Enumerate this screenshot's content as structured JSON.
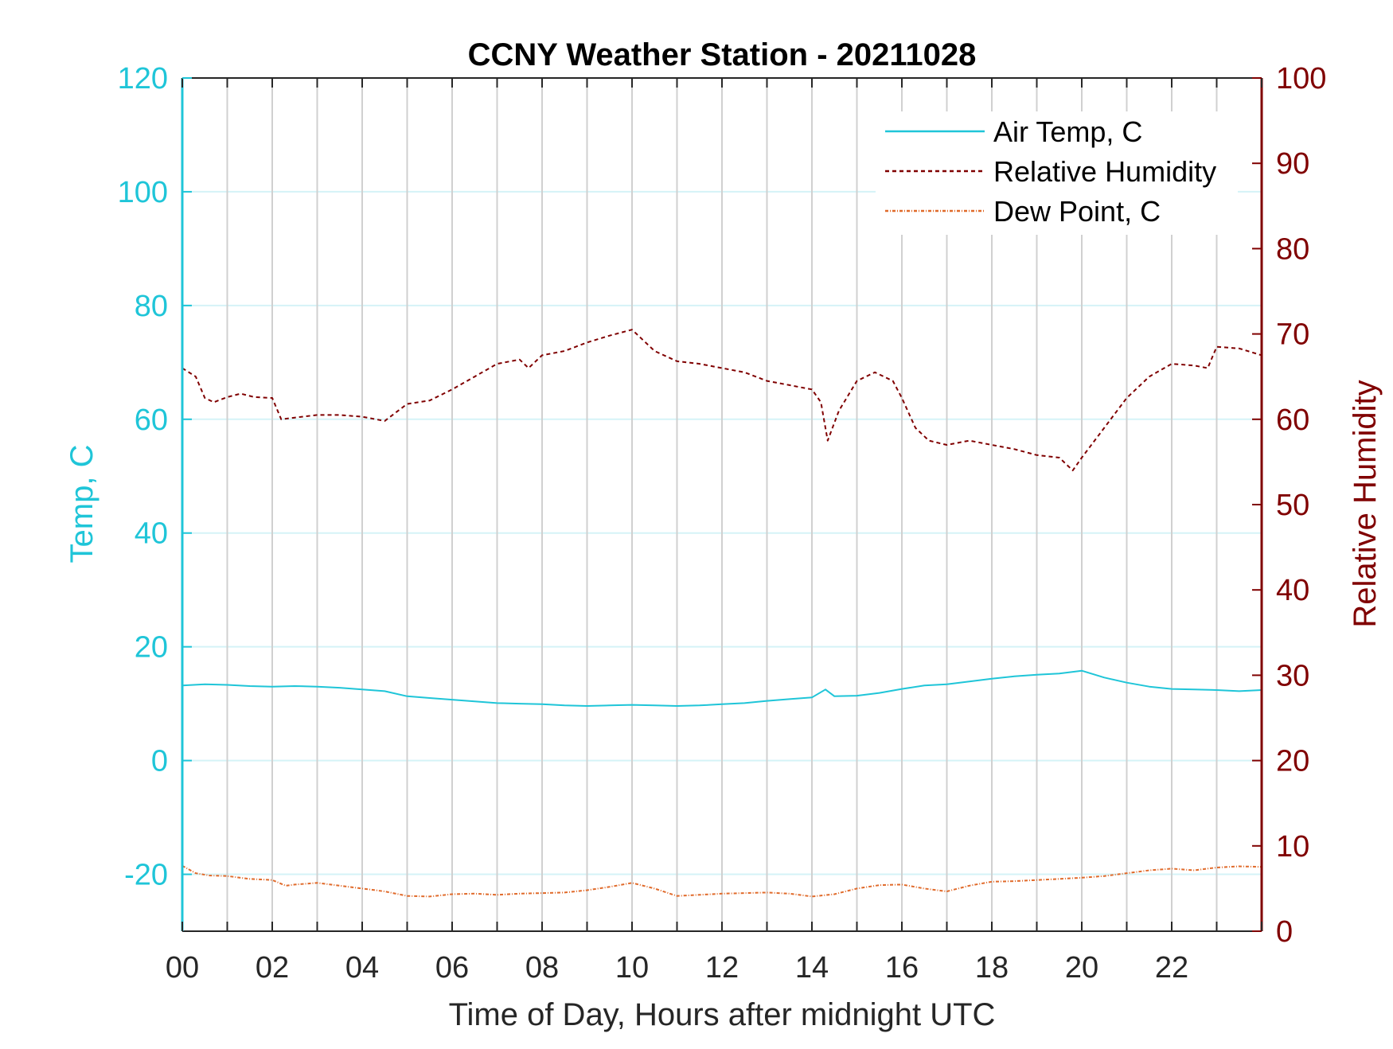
{
  "chart_data": {
    "type": "line",
    "title": "CCNY Weather Station - 20211028",
    "xlabel": "Time of Day, Hours after midnight UTC",
    "ylabel_left": "Temp, C",
    "ylabel_right": "Relative Humidity",
    "xlim": [
      0,
      24
    ],
    "ylim_left": [
      -30,
      120
    ],
    "ylim_right": [
      0,
      100
    ],
    "x_ticks": [
      0,
      2,
      4,
      6,
      8,
      10,
      12,
      14,
      16,
      18,
      20,
      22
    ],
    "x_tick_labels": [
      "00",
      "02",
      "04",
      "06",
      "08",
      "10",
      "12",
      "14",
      "16",
      "18",
      "20",
      "22"
    ],
    "y_left_ticks": [
      -20,
      0,
      20,
      40,
      60,
      80,
      100,
      120
    ],
    "y_left_tick_labels": [
      "-20",
      "0",
      "20",
      "40",
      "60",
      "80",
      "100",
      "120"
    ],
    "y_right_ticks": [
      0,
      10,
      20,
      30,
      40,
      50,
      60,
      70,
      80,
      90,
      100
    ],
    "y_right_tick_labels": [
      "0",
      "10",
      "20",
      "30",
      "40",
      "50",
      "60",
      "70",
      "80",
      "90",
      "100"
    ],
    "grid": true,
    "legend_position": "top-right",
    "colors": {
      "left_axis": "#1fc5d8",
      "right_axis": "#800000",
      "air_temp": "#1fc5d8",
      "humidity": "#800000",
      "dew_point": "#e06a2a",
      "grid_vertical": "#d0d0d0",
      "grid_horizontal": "#d5f3f7"
    },
    "series": [
      {
        "name": "Air Temp, C",
        "axis": "left",
        "style": "solid",
        "x": [
          0,
          0.5,
          1,
          1.5,
          2,
          2.5,
          3,
          3.5,
          4,
          4.5,
          5,
          5.5,
          6,
          6.5,
          7,
          7.5,
          8,
          8.5,
          9,
          9.5,
          10,
          10.5,
          11,
          11.5,
          12,
          12.5,
          13,
          13.5,
          14,
          14.3,
          14.5,
          15,
          15.5,
          16,
          16.5,
          17,
          17.5,
          18,
          18.5,
          19,
          19.5,
          20,
          20.5,
          21,
          21.5,
          22,
          22.5,
          23,
          23.5,
          24
        ],
        "y": [
          13.2,
          13.4,
          13.3,
          13.1,
          13.0,
          13.1,
          13.0,
          12.8,
          12.5,
          12.2,
          11.3,
          11.0,
          10.7,
          10.4,
          10.1,
          10.0,
          9.9,
          9.7,
          9.6,
          9.7,
          9.8,
          9.7,
          9.6,
          9.7,
          9.9,
          10.1,
          10.5,
          10.8,
          11.1,
          12.5,
          11.3,
          11.4,
          11.9,
          12.6,
          13.2,
          13.4,
          13.9,
          14.4,
          14.8,
          15.1,
          15.3,
          15.8,
          14.6,
          13.7,
          13.0,
          12.6,
          12.5,
          12.4,
          12.2,
          12.4
        ]
      },
      {
        "name": "Relative Humidity",
        "axis": "right",
        "style": "dashed",
        "x": [
          0,
          0.3,
          0.5,
          0.7,
          1,
          1.3,
          1.6,
          2,
          2.2,
          2.5,
          3,
          3.5,
          4,
          4.5,
          5,
          5.5,
          6,
          6.5,
          7,
          7.5,
          7.7,
          8,
          8.5,
          9,
          9.5,
          10,
          10.5,
          11,
          11.5,
          12,
          12.5,
          13,
          13.5,
          14,
          14.2,
          14.35,
          14.6,
          15,
          15.4,
          15.8,
          16,
          16.3,
          16.6,
          17,
          17.5,
          18,
          18.5,
          19,
          19.5,
          19.8,
          20,
          20.5,
          21,
          21.5,
          22,
          22.5,
          22.8,
          23,
          23.5,
          24
        ],
        "y": [
          66.0,
          65.0,
          62.5,
          62.0,
          62.6,
          63.0,
          62.6,
          62.5,
          60.0,
          60.2,
          60.5,
          60.5,
          60.3,
          59.8,
          61.8,
          62.2,
          63.5,
          65.0,
          66.5,
          67.0,
          66.0,
          67.5,
          68.0,
          69.0,
          69.8,
          70.5,
          68.0,
          66.8,
          66.5,
          66.0,
          65.5,
          64.5,
          64.0,
          63.5,
          62.0,
          57.5,
          61.0,
          64.5,
          65.5,
          64.5,
          62.5,
          59.0,
          57.5,
          57.0,
          57.5,
          57.0,
          56.5,
          55.8,
          55.5,
          54.0,
          55.5,
          59.0,
          62.5,
          65.0,
          66.5,
          66.3,
          66.0,
          68.5,
          68.3,
          67.5
        ]
      },
      {
        "name": "Dew Point, C",
        "axis": "left",
        "style": "dash-dot",
        "x": [
          0,
          0.3,
          0.6,
          1,
          1.5,
          2,
          2.3,
          2.5,
          3,
          3.5,
          4,
          4.5,
          5,
          5.5,
          6,
          6.5,
          7,
          7.5,
          8,
          8.5,
          9,
          9.5,
          10,
          10.5,
          11,
          11.5,
          12,
          12.5,
          13,
          13.5,
          14,
          14.5,
          15,
          15.5,
          16,
          16.5,
          17,
          17.5,
          18,
          18.5,
          19,
          19.5,
          20,
          20.5,
          21,
          21.5,
          22,
          22.5,
          23,
          23.5,
          24
        ],
        "y": [
          -18.5,
          -19.8,
          -20.2,
          -20.3,
          -20.8,
          -21.0,
          -22.0,
          -21.8,
          -21.5,
          -22.0,
          -22.5,
          -23.0,
          -23.8,
          -23.9,
          -23.5,
          -23.4,
          -23.6,
          -23.4,
          -23.3,
          -23.2,
          -22.8,
          -22.2,
          -21.5,
          -22.5,
          -23.8,
          -23.6,
          -23.4,
          -23.3,
          -23.2,
          -23.4,
          -23.9,
          -23.5,
          -22.5,
          -21.9,
          -21.8,
          -22.5,
          -23.0,
          -22.0,
          -21.3,
          -21.2,
          -21.0,
          -20.8,
          -20.6,
          -20.3,
          -19.8,
          -19.3,
          -19.0,
          -19.3,
          -18.8,
          -18.6,
          -18.7
        ]
      }
    ]
  }
}
